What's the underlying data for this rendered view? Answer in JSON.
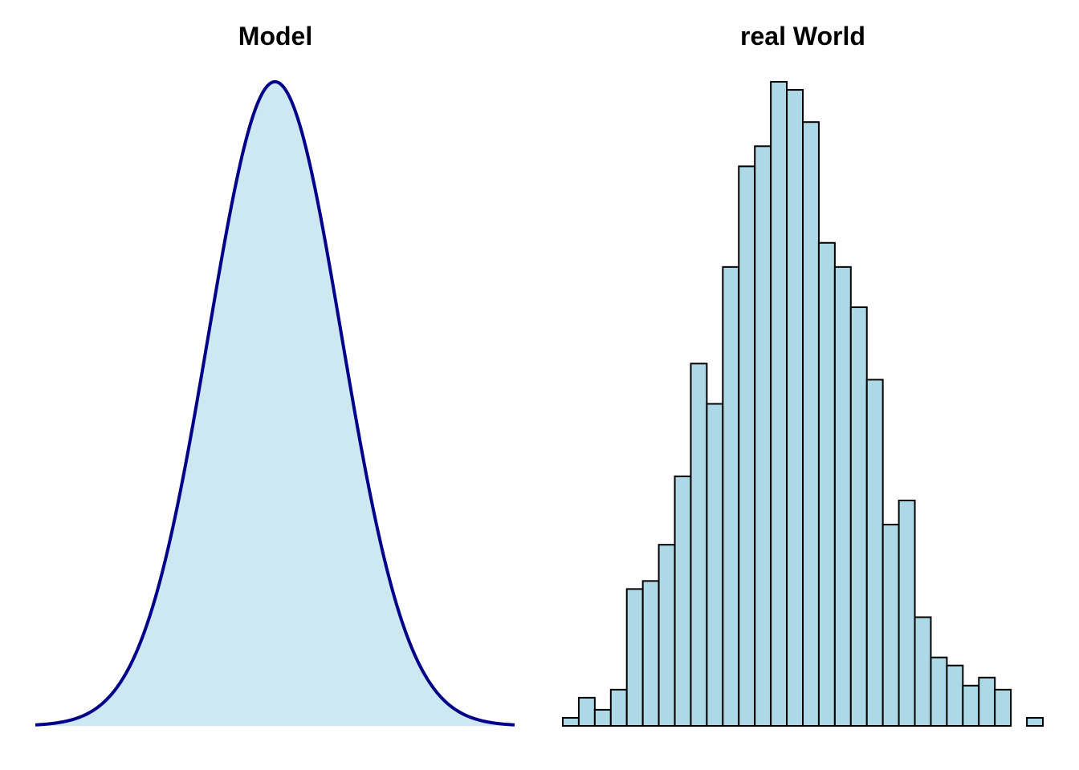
{
  "chart_data": [
    {
      "type": "area",
      "title": "Model",
      "xlabel": "",
      "ylabel": "",
      "distribution": "normal",
      "mean": 0,
      "sd": 1,
      "xlim": [
        -3.6,
        3.6
      ],
      "ylim": [
        0,
        0.3989
      ],
      "axes_visible": false,
      "grid": false,
      "line_color": "#00008B",
      "fill_color": "#CDE8F0"
    },
    {
      "type": "bar",
      "title": "real World",
      "xlabel": "",
      "ylabel": "",
      "bins": 30,
      "values": [
        2,
        7,
        4,
        9,
        34,
        36,
        45,
        62,
        90,
        80,
        114,
        139,
        144,
        160,
        158,
        150,
        120,
        114,
        104,
        86,
        50,
        56,
        27,
        17,
        15,
        10,
        12,
        9,
        0,
        2
      ],
      "ylim": [
        0,
        160
      ],
      "axes_visible": false,
      "grid": false,
      "bar_fill": "#ADD8E6",
      "bar_stroke": "#000000"
    }
  ]
}
